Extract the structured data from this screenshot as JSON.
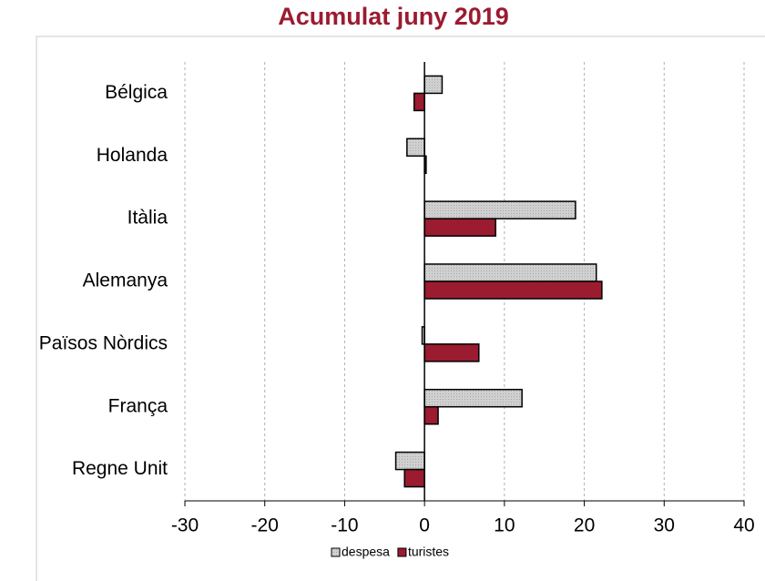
{
  "chart_data": {
    "type": "hbar",
    "title": "Acumulat juny 2019",
    "categories": [
      "Bélgica",
      "Holanda",
      "Itàlia",
      "Alemanya",
      "Països Nòrdics",
      "França",
      "Regne Unit"
    ],
    "series": [
      {
        "name": "despesa",
        "color": "#c8c8c8",
        "values": [
          2.2,
          -2.2,
          18.9,
          21.5,
          -0.3,
          12.2,
          -3.6
        ]
      },
      {
        "name": "turistes",
        "color": "#9b1b30",
        "values": [
          -1.3,
          0.2,
          8.9,
          22.2,
          6.8,
          1.7,
          -2.5
        ]
      }
    ],
    "xlim": [
      -30,
      40
    ],
    "xticks": [
      -30,
      -20,
      -10,
      0,
      10,
      20,
      30,
      40
    ],
    "grid": true,
    "legend": "bottom"
  }
}
